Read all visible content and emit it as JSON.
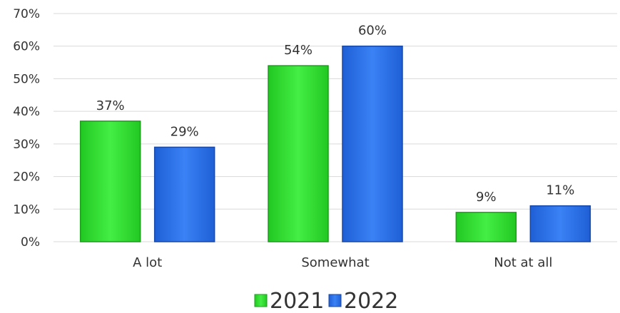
{
  "chart_data": {
    "type": "bar",
    "title": "",
    "xlabel": "",
    "ylabel": "",
    "categories": [
      "A lot",
      "Somewhat",
      "Not at all"
    ],
    "series": [
      {
        "name": "2021",
        "values": [
          37,
          54,
          9
        ],
        "labels": [
          "37%",
          "54%",
          "9%"
        ],
        "color": "#33dd33"
      },
      {
        "name": "2022",
        "values": [
          29,
          60,
          11
        ],
        "labels": [
          "29%",
          "60%",
          "11%"
        ],
        "color": "#2f6fe8"
      }
    ],
    "ylim": [
      0,
      70
    ],
    "y_ticks": [
      "0%",
      "10%",
      "20%",
      "30%",
      "40%",
      "50%",
      "60%",
      "70%"
    ],
    "grid": true,
    "legend_position": "bottom"
  }
}
